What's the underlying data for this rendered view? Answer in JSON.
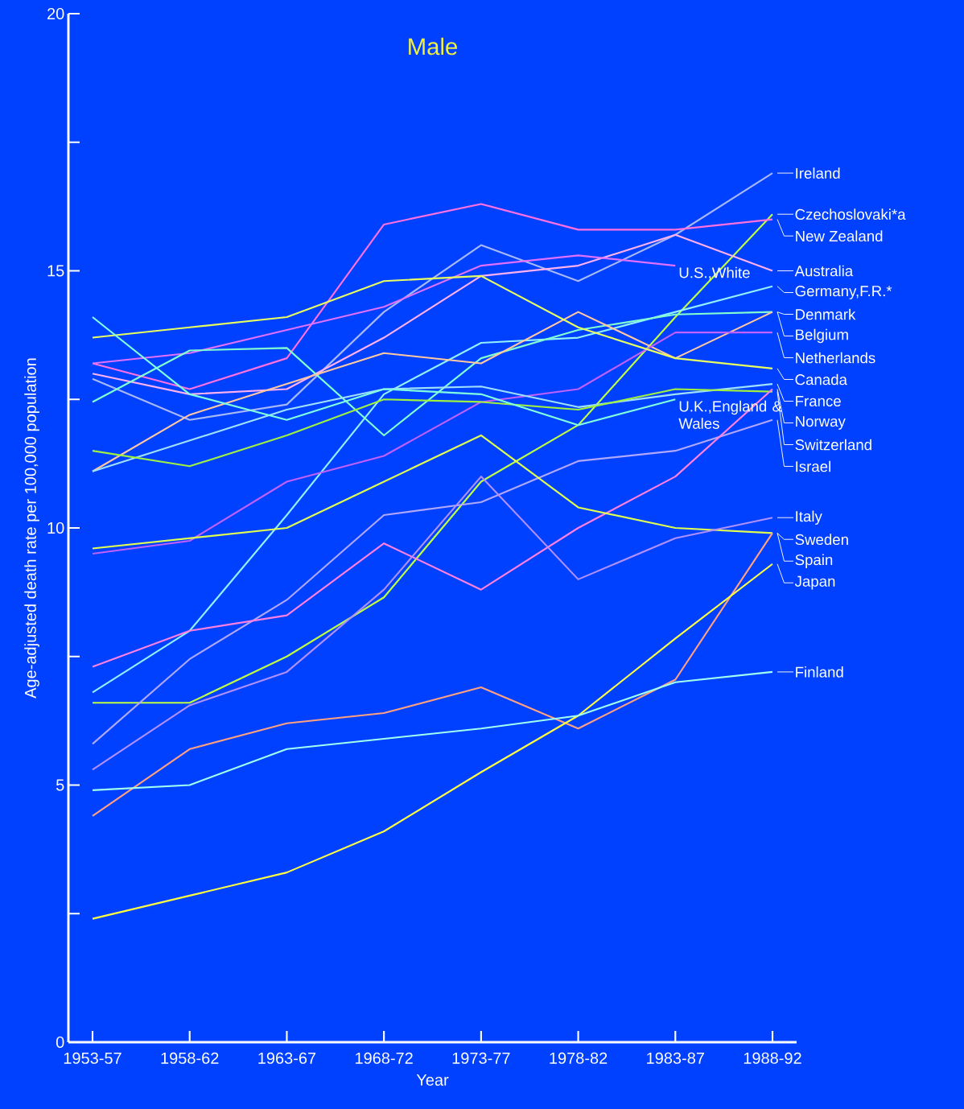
{
  "chart_data": {
    "type": "line",
    "title": "Male",
    "xlabel": "Year",
    "ylabel": "Age-adjusted death rate per 100,000 population",
    "categories": [
      "1953-57",
      "1958-62",
      "1963-67",
      "1968-72",
      "1973-77",
      "1978-82",
      "1983-87",
      "1988-92"
    ],
    "ylim": [
      0,
      20
    ],
    "yticks": [
      0,
      {
        "value": 2.5,
        "label": null
      },
      5,
      {
        "value": 7.5,
        "label": null
      },
      10,
      {
        "value": 12.5,
        "label": null
      },
      15,
      {
        "value": 17.5,
        "label": null
      },
      20
    ],
    "series": [
      {
        "name": "Ireland",
        "color": "#a8b8f8",
        "values": [
          12.9,
          12.1,
          12.4,
          14.2,
          15.5,
          14.8,
          15.7,
          16.9
        ]
      },
      {
        "name": "Czechoslovaki*a",
        "color": "#c0ff40",
        "values": [
          6.6,
          6.6,
          7.5,
          8.65,
          10.9,
          12.0,
          14.1,
          16.1
        ]
      },
      {
        "name": "New Zealand",
        "color": "#ff70e0",
        "values": [
          13.2,
          12.7,
          13.3,
          15.9,
          16.3,
          15.8,
          15.8,
          16.0
        ]
      },
      {
        "name": "Australia",
        "color": "#ffb0f0",
        "values": [
          13.0,
          12.6,
          12.7,
          13.7,
          14.9,
          15.1,
          15.7,
          15.0
        ]
      },
      {
        "name": "U.S.,White",
        "color": "#e070ff",
        "values": [
          13.2,
          13.4,
          13.85,
          14.3,
          15.1,
          15.3,
          15.1,
          null
        ]
      },
      {
        "name": "Germany,F.R.*",
        "color": "#90f0ff",
        "values": [
          6.8,
          8.0,
          10.25,
          12.6,
          13.6,
          13.7,
          14.2,
          14.7
        ]
      },
      {
        "name": "Denmark",
        "color": "#80ffd0",
        "values": [
          12.45,
          13.45,
          13.5,
          11.8,
          13.3,
          13.85,
          14.15,
          14.2
        ]
      },
      {
        "name": "Belgium",
        "color": "#ffc8a0",
        "values": [
          11.1,
          12.2,
          12.8,
          13.4,
          13.2,
          14.2,
          13.3,
          14.2
        ]
      },
      {
        "name": "Netherlands",
        "color": "#c060ff",
        "values": [
          9.5,
          9.75,
          10.9,
          11.4,
          12.45,
          12.7,
          13.8,
          13.8
        ]
      },
      {
        "name": "Canada",
        "color": "#e8ff60",
        "values": [
          13.7,
          13.9,
          14.1,
          14.8,
          14.9,
          13.9,
          13.3,
          13.1
        ]
      },
      {
        "name": "France",
        "color": "#a0e0ff",
        "values": [
          11.1,
          11.7,
          12.3,
          12.7,
          12.75,
          12.35,
          12.6,
          12.8
        ]
      },
      {
        "name": "Switzerland",
        "color": "#a0f040",
        "values": [
          11.5,
          11.2,
          11.8,
          12.5,
          12.45,
          12.3,
          12.7,
          12.65
        ]
      },
      {
        "name": "U.K.,England & Wales",
        "color": "#80ffe0",
        "values": [
          14.1,
          12.6,
          12.1,
          12.7,
          12.6,
          12.0,
          12.5,
          null
        ]
      },
      {
        "name": "Israel",
        "color": "#b0a8ff",
        "values": [
          5.8,
          7.45,
          8.6,
          10.25,
          10.5,
          11.3,
          11.5,
          12.1
        ]
      },
      {
        "name": "Norway",
        "color": "#ff80e0",
        "values": [
          7.3,
          8.0,
          8.3,
          9.7,
          8.8,
          10.0,
          11.0,
          12.7
        ]
      },
      {
        "name": "Sweden",
        "color": "#e0ff50",
        "values": [
          9.6,
          9.8,
          10.0,
          10.9,
          11.8,
          10.4,
          10.0,
          9.9
        ]
      },
      {
        "name": "Italy",
        "color": "#b090ff",
        "values": [
          5.3,
          6.55,
          7.2,
          8.8,
          11.0,
          9.0,
          9.8,
          10.2
        ]
      },
      {
        "name": "Spain",
        "color": "#ffa080",
        "values": [
          4.4,
          5.7,
          6.2,
          6.4,
          6.9,
          6.1,
          7.05,
          9.9
        ]
      },
      {
        "name": "Japan",
        "color": "#ffff40",
        "values": [
          2.4,
          2.85,
          3.3,
          4.1,
          5.25,
          6.35,
          7.85,
          9.3
        ]
      },
      {
        "name": "Finland",
        "color": "#a0fff0",
        "values": [
          4.9,
          5.0,
          5.7,
          5.9,
          6.1,
          6.35,
          7.0,
          7.2
        ]
      }
    ]
  }
}
